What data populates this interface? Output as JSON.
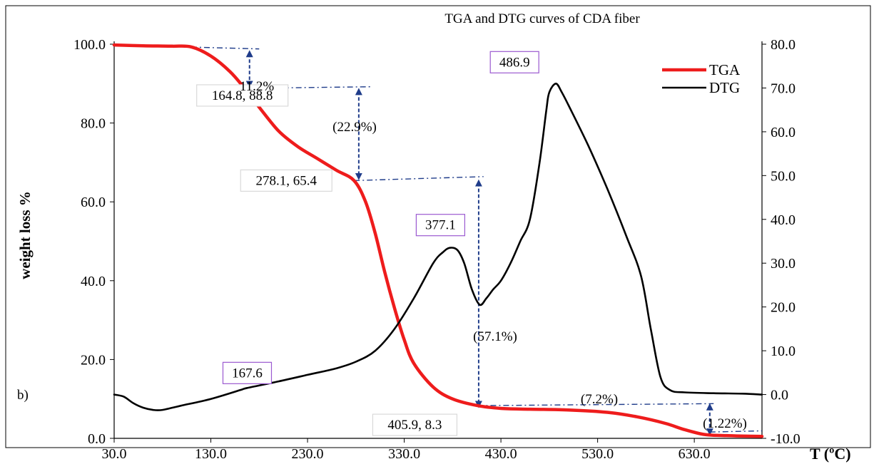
{
  "chart_data": {
    "type": "line",
    "title": "TGA and DTG curves of CDA fiber",
    "panel_label": "b)",
    "xlabel": "T (ºC)",
    "ylabel": "weight loss %",
    "xlim": [
      30,
      700
    ],
    "ylim": [
      0,
      100
    ],
    "y2lim": [
      -10,
      80
    ],
    "x_ticks": [
      "30.0",
      "130.0",
      "230.0",
      "330.0",
      "430.0",
      "530.0",
      "630.0"
    ],
    "x_tick_values": [
      30,
      130,
      230,
      330,
      430,
      530,
      630
    ],
    "y_ticks": [
      "0.0",
      "20.0",
      "40.0",
      "60.0",
      "80.0",
      "100.0"
    ],
    "y_tick_values": [
      0,
      20,
      40,
      60,
      80,
      100
    ],
    "y2_ticks": [
      "-10.0",
      "0.0",
      "10.0",
      "20.0",
      "30.0",
      "40.0",
      "50.0",
      "60.0",
      "70.0",
      "80.0"
    ],
    "y2_tick_values": [
      -10,
      0,
      10,
      20,
      30,
      40,
      50,
      60,
      70,
      80
    ],
    "legend_position": "top-right",
    "series": [
      {
        "name": "TGA",
        "axis": "left",
        "color": "#ee1c1c",
        "x": [
          30,
          60,
          90,
          110,
          130,
          150,
          164.8,
          180,
          200,
          220,
          240,
          260,
          278.1,
          290,
          300,
          310,
          320,
          330,
          340,
          360,
          380,
          405.9,
          430,
          460,
          500,
          540,
          570,
          600,
          620,
          640,
          660,
          700
        ],
        "y": [
          99.8,
          99.6,
          99.5,
          99.3,
          97,
          93,
          88.8,
          84,
          78,
          74,
          71,
          68,
          65.4,
          60,
          52,
          42,
          33,
          25,
          19,
          13,
          10,
          8.3,
          7.6,
          7.4,
          7.2,
          6.6,
          5.5,
          3.8,
          2.2,
          1,
          0.7,
          0.5
        ]
      },
      {
        "name": "DTG",
        "axis": "right",
        "color": "#000000",
        "x": [
          30,
          40,
          50,
          60,
          70,
          80,
          100,
          130,
          160,
          167.6,
          200,
          230,
          260,
          280,
          300,
          320,
          340,
          360,
          370,
          377.1,
          385,
          392,
          400,
          408,
          415,
          422,
          430,
          440,
          450,
          460,
          470,
          477,
          480,
          486.9,
          493,
          500,
          520,
          540,
          560,
          575,
          585,
          595,
          605,
          620,
          650,
          680,
          700
        ],
        "y": [
          0,
          -0.5,
          -2,
          -3,
          -3.5,
          -3.5,
          -2.5,
          -1,
          1,
          1.5,
          3,
          4.5,
          6,
          7.5,
          10,
          15,
          22,
          30,
          32.5,
          33.5,
          33,
          30,
          24,
          20.5,
          22,
          24,
          26,
          30,
          35,
          40,
          53,
          65,
          69,
          71,
          69,
          66,
          57,
          47,
          36,
          27,
          15,
          4,
          1,
          0.5,
          0.3,
          0.2,
          0
        ]
      }
    ],
    "annotations": [
      {
        "text": "164.8, 88.8",
        "x": 164.8,
        "y": 88.8,
        "axis": "left",
        "boxed": true,
        "box_color": "#d9d9d9"
      },
      {
        "text": "278.1, 65.4",
        "x": 278.1,
        "y": 65.4,
        "axis": "left",
        "boxed": true,
        "box_color": "#d9d9d9"
      },
      {
        "text": "405.9, 8.3",
        "x": 405.9,
        "y": 8.3,
        "axis": "left",
        "boxed": true,
        "box_color": "#d9d9d9"
      },
      {
        "text": "167.6",
        "x": 167.6,
        "y": 1.5,
        "axis": "right",
        "boxed": true,
        "box_color": "#9b59d0"
      },
      {
        "text": "377.1",
        "x": 377.1,
        "y": 33.5,
        "axis": "right",
        "boxed": true,
        "box_color": "#9b59d0"
      },
      {
        "text": "486.9",
        "x": 486.9,
        "y": 71,
        "axis": "right",
        "boxed": true,
        "box_color": "#9b59d0"
      },
      {
        "text": "11.2%",
        "boxed": false
      },
      {
        "text": "(22.9%)",
        "boxed": false
      },
      {
        "text": "(57.1%)",
        "boxed": false
      },
      {
        "text": "(7.2%)",
        "boxed": false
      },
      {
        "text": "(1.22%)",
        "boxed": false
      }
    ],
    "arrow_color": "#1f3c8a"
  }
}
